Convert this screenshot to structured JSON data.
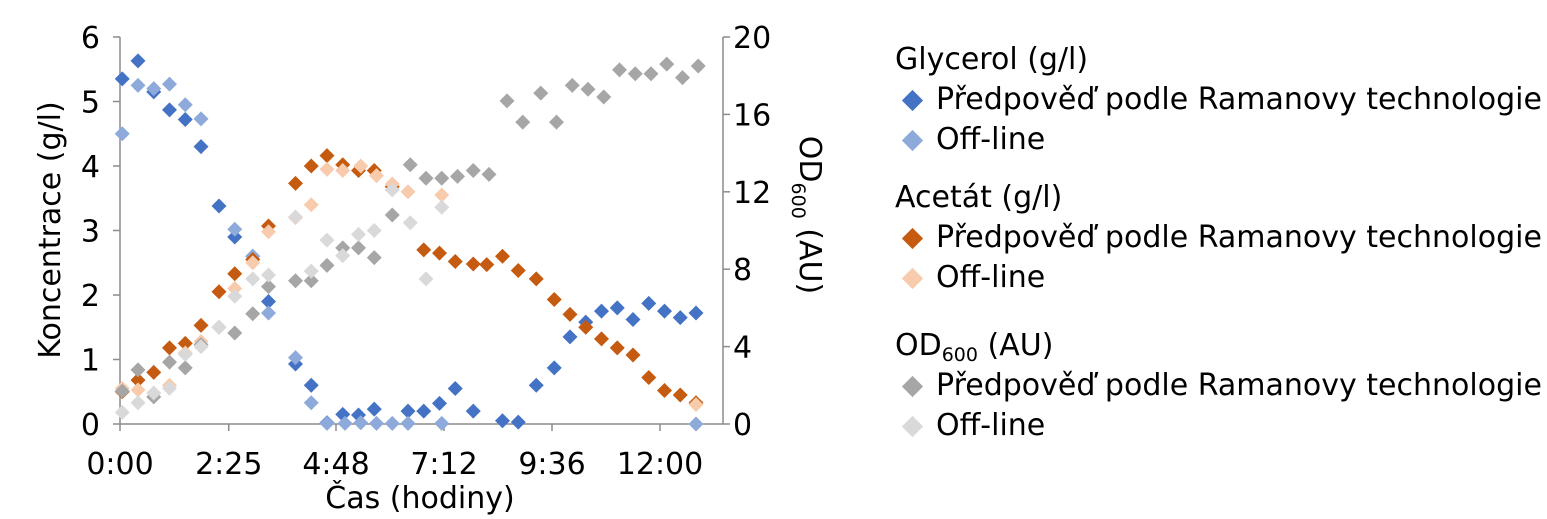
{
  "chart_data": {
    "type": "scatter",
    "x_unit": "hours",
    "xlabel": "Čas (hodiny)",
    "ylabel": "Koncentrace (g/l)",
    "y2label": {
      "main": "OD",
      "sub": "600",
      "rest": " (AU)"
    },
    "xlim": [
      0,
      13.4
    ],
    "ylim": [
      0,
      6
    ],
    "y2lim": [
      0,
      20
    ],
    "x_ticks": [
      {
        "value": 0.0,
        "label": "0:00"
      },
      {
        "value": 2.4167,
        "label": "2:25"
      },
      {
        "value": 4.8,
        "label": "4:48"
      },
      {
        "value": 7.2,
        "label": "7:12"
      },
      {
        "value": 9.6,
        "label": "9:36"
      },
      {
        "value": 12.0,
        "label": "12:00"
      }
    ],
    "y_ticks": [
      0,
      1,
      2,
      3,
      4,
      5,
      6
    ],
    "y2_ticks": [
      0,
      4,
      8,
      12,
      16,
      20
    ],
    "grid": false,
    "legend_position": "right",
    "series": [
      {
        "group": "Glycerol (g/l)",
        "name": "Předpověď podle Ramanovy technologie",
        "axis": "left",
        "color": "#4472c4",
        "points": [
          [
            0.05,
            5.35
          ],
          [
            0.4,
            5.63
          ],
          [
            0.75,
            5.15
          ],
          [
            1.1,
            4.87
          ],
          [
            1.45,
            4.72
          ],
          [
            1.8,
            4.3
          ],
          [
            2.2,
            3.38
          ],
          [
            2.55,
            2.9
          ],
          [
            2.95,
            2.6
          ],
          [
            3.3,
            1.9
          ],
          [
            3.9,
            0.93
          ],
          [
            4.25,
            0.6
          ],
          [
            4.6,
            0.02
          ],
          [
            4.95,
            0.15
          ],
          [
            5.3,
            0.14
          ],
          [
            5.65,
            0.23
          ],
          [
            6.4,
            0.2
          ],
          [
            6.75,
            0.2
          ],
          [
            7.1,
            0.32
          ],
          [
            7.45,
            0.55
          ],
          [
            7.85,
            0.2
          ],
          [
            8.5,
            0.05
          ],
          [
            8.85,
            0.03
          ],
          [
            9.25,
            0.6
          ],
          [
            9.65,
            0.87
          ],
          [
            10.0,
            1.35
          ],
          [
            10.35,
            1.58
          ],
          [
            10.7,
            1.75
          ],
          [
            11.05,
            1.8
          ],
          [
            11.4,
            1.62
          ],
          [
            11.75,
            1.87
          ],
          [
            12.1,
            1.75
          ],
          [
            12.45,
            1.65
          ],
          [
            12.8,
            1.72
          ]
        ]
      },
      {
        "group": "Glycerol (g/l)",
        "name": "Off-line",
        "axis": "left",
        "color": "#8eaadb",
        "points": [
          [
            0.05,
            4.5
          ],
          [
            0.4,
            5.25
          ],
          [
            0.75,
            5.2
          ],
          [
            1.1,
            5.27
          ],
          [
            1.45,
            4.95
          ],
          [
            1.8,
            4.73
          ],
          [
            2.55,
            3.02
          ],
          [
            2.95,
            2.6
          ],
          [
            3.3,
            1.72
          ],
          [
            3.9,
            1.03
          ],
          [
            4.25,
            0.33
          ],
          [
            4.6,
            0.01
          ],
          [
            5.0,
            0.01
          ],
          [
            5.35,
            0.02
          ],
          [
            5.7,
            0.01
          ],
          [
            6.05,
            0.01
          ],
          [
            6.4,
            0.01
          ],
          [
            7.15,
            0.01
          ],
          [
            12.8,
            0.0
          ]
        ]
      },
      {
        "group": "Acetát (g/l)",
        "name": "Předpověď podle Ramanovy technologie",
        "axis": "left",
        "color": "#c55a11",
        "points": [
          [
            0.05,
            0.5
          ],
          [
            0.4,
            0.68
          ],
          [
            0.75,
            0.8
          ],
          [
            1.1,
            1.18
          ],
          [
            1.45,
            1.25
          ],
          [
            1.8,
            1.53
          ],
          [
            2.2,
            2.05
          ],
          [
            2.55,
            2.33
          ],
          [
            2.95,
            2.55
          ],
          [
            3.3,
            3.07
          ],
          [
            3.9,
            3.73
          ],
          [
            4.25,
            4.0
          ],
          [
            4.6,
            4.16
          ],
          [
            4.95,
            4.02
          ],
          [
            5.3,
            3.93
          ],
          [
            5.65,
            3.93
          ],
          [
            6.05,
            3.68
          ],
          [
            6.75,
            2.7
          ],
          [
            7.1,
            2.65
          ],
          [
            7.45,
            2.52
          ],
          [
            7.85,
            2.48
          ],
          [
            8.15,
            2.47
          ],
          [
            8.5,
            2.6
          ],
          [
            8.85,
            2.38
          ],
          [
            9.25,
            2.25
          ],
          [
            9.65,
            1.93
          ],
          [
            10.0,
            1.7
          ],
          [
            10.35,
            1.5
          ],
          [
            10.7,
            1.32
          ],
          [
            11.05,
            1.18
          ],
          [
            11.4,
            1.07
          ],
          [
            11.75,
            0.72
          ],
          [
            12.1,
            0.52
          ],
          [
            12.45,
            0.45
          ],
          [
            12.8,
            0.33
          ]
        ]
      },
      {
        "group": "Acetát (g/l)",
        "name": "Off-line",
        "axis": "left",
        "color": "#f8cbad",
        "points": [
          [
            0.05,
            0.55
          ],
          [
            0.4,
            0.53
          ],
          [
            1.1,
            0.6
          ],
          [
            1.45,
            1.1
          ],
          [
            1.8,
            1.28
          ],
          [
            2.55,
            2.1
          ],
          [
            2.95,
            2.5
          ],
          [
            3.3,
            2.98
          ],
          [
            3.9,
            3.2
          ],
          [
            4.25,
            3.4
          ],
          [
            4.6,
            3.95
          ],
          [
            4.95,
            3.93
          ],
          [
            5.35,
            4.0
          ],
          [
            5.7,
            3.85
          ],
          [
            6.05,
            3.72
          ],
          [
            6.4,
            3.6
          ],
          [
            7.15,
            3.55
          ],
          [
            12.8,
            0.3
          ]
        ]
      },
      {
        "group": "OD600 (AU)",
        "name": "Předpověď podle Ramanovy technologie",
        "axis": "right",
        "color": "#a6a6a6",
        "points": [
          [
            0.05,
            1.7
          ],
          [
            0.4,
            2.8
          ],
          [
            0.75,
            1.4
          ],
          [
            1.1,
            3.2
          ],
          [
            1.45,
            2.9
          ],
          [
            1.8,
            4.1
          ],
          [
            2.2,
            5.0
          ],
          [
            2.55,
            4.7
          ],
          [
            2.95,
            5.7
          ],
          [
            3.3,
            7.1
          ],
          [
            3.9,
            7.4
          ],
          [
            4.25,
            7.4
          ],
          [
            4.6,
            8.2
          ],
          [
            4.95,
            9.1
          ],
          [
            5.3,
            9.1
          ],
          [
            5.65,
            8.6
          ],
          [
            6.05,
            10.8
          ],
          [
            6.45,
            13.4
          ],
          [
            6.8,
            12.7
          ],
          [
            7.15,
            12.7
          ],
          [
            7.5,
            12.8
          ],
          [
            7.85,
            13.1
          ],
          [
            8.2,
            12.9
          ],
          [
            8.6,
            16.7
          ],
          [
            8.95,
            15.6
          ],
          [
            9.35,
            17.1
          ],
          [
            9.7,
            15.6
          ],
          [
            10.05,
            17.5
          ],
          [
            10.4,
            17.3
          ],
          [
            10.75,
            16.9
          ],
          [
            11.1,
            18.3
          ],
          [
            11.45,
            18.1
          ],
          [
            11.8,
            18.1
          ],
          [
            12.15,
            18.6
          ],
          [
            12.5,
            17.9
          ],
          [
            12.85,
            18.5
          ]
        ]
      },
      {
        "group": "OD600 (AU)",
        "name": "Off-line",
        "axis": "right",
        "color": "#d9d9d9",
        "points": [
          [
            0.05,
            0.6
          ],
          [
            0.4,
            1.1
          ],
          [
            0.75,
            1.6
          ],
          [
            1.1,
            1.85
          ],
          [
            1.45,
            3.6
          ],
          [
            1.8,
            4.0
          ],
          [
            2.2,
            5.0
          ],
          [
            2.55,
            6.6
          ],
          [
            2.95,
            7.5
          ],
          [
            3.3,
            7.7
          ],
          [
            3.9,
            10.7
          ],
          [
            4.25,
            7.9
          ],
          [
            4.6,
            9.5
          ],
          [
            4.95,
            8.7
          ],
          [
            5.3,
            9.8
          ],
          [
            5.65,
            10.0
          ],
          [
            6.05,
            12.1
          ],
          [
            6.45,
            10.4
          ],
          [
            6.8,
            7.5
          ],
          [
            7.15,
            11.2
          ]
        ]
      }
    ]
  },
  "legend": {
    "groups": [
      {
        "title": "Glycerol (g/l)",
        "items": [
          {
            "label": "Předpověď podle Ramanovy technologie",
            "color": "#4472c4"
          },
          {
            "label": "Off-line",
            "color": "#8eaadb"
          }
        ]
      },
      {
        "title": "Acetát (g/l)",
        "items": [
          {
            "label": "Předpověď podle Ramanovy technologie",
            "color": "#c55a11"
          },
          {
            "label": "Off-line",
            "color": "#f8cbad"
          }
        ]
      },
      {
        "title": "OD600 (AU)",
        "title_main": "OD",
        "title_sub": "600",
        "title_rest": " (AU)",
        "items": [
          {
            "label": "Předpověď podle Ramanovy technologie",
            "color": "#a6a6a6"
          },
          {
            "label": "Off-line",
            "color": "#d9d9d9"
          }
        ]
      }
    ]
  }
}
